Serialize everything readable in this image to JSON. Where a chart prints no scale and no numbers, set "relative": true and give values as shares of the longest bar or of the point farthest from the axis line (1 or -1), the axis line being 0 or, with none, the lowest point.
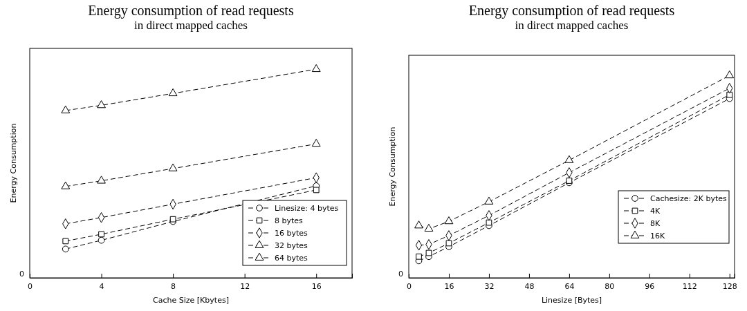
{
  "chart_data": [
    {
      "type": "line",
      "title": "Energy consumption of read requests",
      "subtitle": "in direct mapped caches",
      "xlabel": "Cache Size [Kbytes]",
      "ylabel": "Energy Consumption",
      "relative": true,
      "x": [
        2,
        4,
        8,
        16
      ],
      "xlim": [
        0,
        18
      ],
      "xticks": [
        0,
        4,
        8,
        12,
        16
      ],
      "legend": "bottom right",
      "line_style": "dashed",
      "grid": false,
      "annotations": [
        "0"
      ],
      "series": [
        {
          "name": "Linesize: 4 bytes",
          "color": "#000000",
          "marker": "circle",
          "values": [
            0.138,
            0.18,
            0.27,
            0.441
          ]
        },
        {
          "name": "8 bytes",
          "color": "#000000",
          "marker": "square",
          "values": [
            0.176,
            0.209,
            0.281,
            0.421
          ]
        },
        {
          "name": "16 bytes",
          "color": "#000000",
          "marker": "diamond",
          "values": [
            0.259,
            0.289,
            0.353,
            0.48
          ]
        },
        {
          "name": "32 bytes",
          "color": "#000000",
          "marker": "triangle",
          "values": [
            0.438,
            0.465,
            0.524,
            0.642
          ]
        },
        {
          "name": "64 bytes",
          "color": "#000000",
          "marker": "triangle",
          "values": [
            0.802,
            0.827,
            0.884,
            1.0
          ]
        }
      ]
    },
    {
      "type": "line",
      "title": "Energy consumption of read requests",
      "subtitle": "in direct mapped caches",
      "xlabel": "Linesize [Bytes]",
      "ylabel": "Energy Consumption",
      "relative": true,
      "x": [
        4,
        8,
        16,
        32,
        64,
        128
      ],
      "xlim": [
        0,
        130
      ],
      "xticks": [
        0,
        16,
        32,
        48,
        64,
        80,
        96,
        112,
        128
      ],
      "legend": "bottom right",
      "line_style": "dashed",
      "grid": false,
      "annotations": [
        "0"
      ],
      "series": [
        {
          "name": "Cachesize: 2K bytes",
          "color": "#000000",
          "marker": "circle",
          "values": [
            0.084,
            0.105,
            0.154,
            0.258,
            0.47,
            0.886
          ]
        },
        {
          "name": "4K",
          "color": "#000000",
          "marker": "square",
          "values": [
            0.105,
            0.123,
            0.171,
            0.273,
            0.48,
            0.905
          ]
        },
        {
          "name": "8K",
          "color": "#000000",
          "marker": "diamond",
          "values": [
            0.161,
            0.165,
            0.209,
            0.308,
            0.52,
            0.937
          ]
        },
        {
          "name": "16K",
          "color": "#000000",
          "marker": "triangle",
          "values": [
            0.258,
            0.242,
            0.279,
            0.376,
            0.581,
            1.0
          ]
        }
      ]
    }
  ]
}
